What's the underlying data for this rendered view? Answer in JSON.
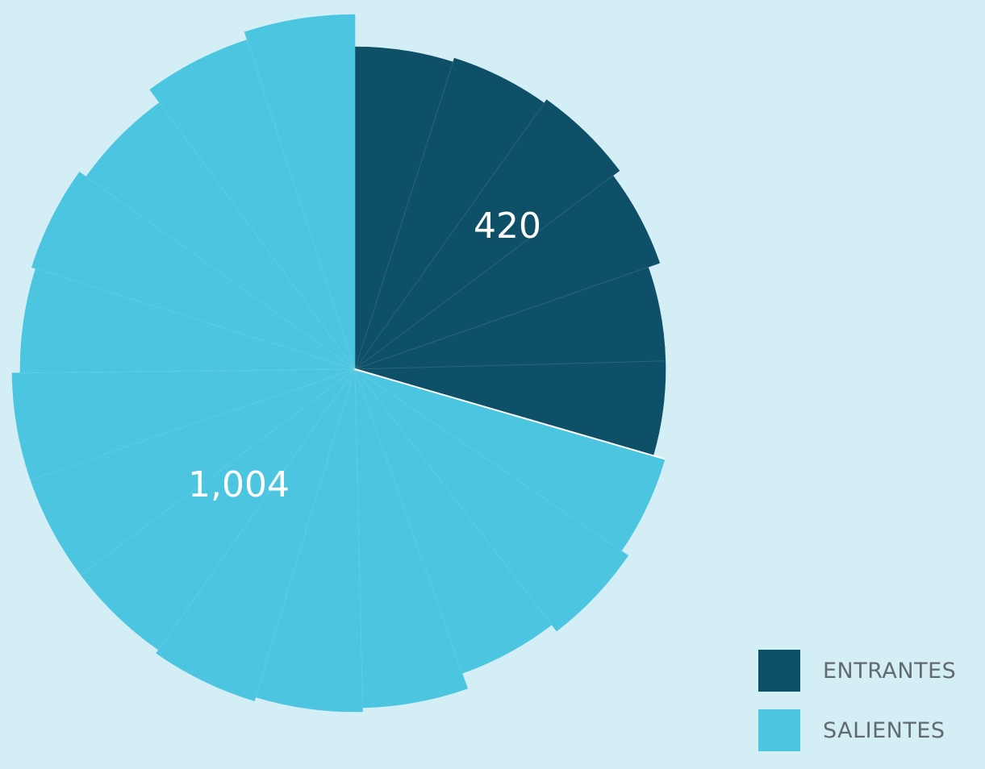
{
  "chart_data": {
    "type": "pie",
    "title": "",
    "series": [
      {
        "name": "ENTRANTES",
        "value": 420,
        "value_label": "420",
        "color": "#0e5067"
      },
      {
        "name": "SALIENTES",
        "value": 1004,
        "value_label": "1,004",
        "color": "#4bc5e0"
      }
    ],
    "legend_position": "bottom-right"
  }
}
